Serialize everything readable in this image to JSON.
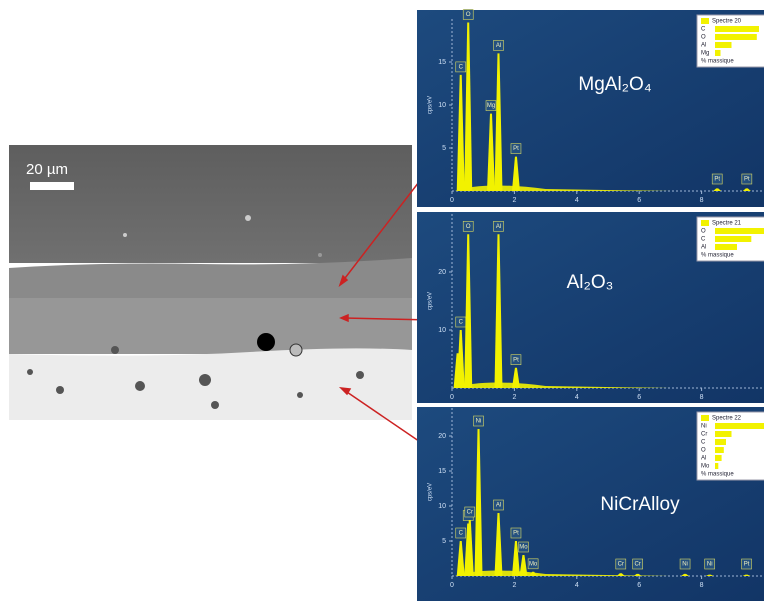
{
  "image": {
    "scale_label": "20 µm"
  },
  "chart_data": [
    {
      "type": "spectrum",
      "annotation": "MgAl₂O₄",
      "ylabel": "cps/eV",
      "categories": [
        "C",
        "O",
        "Mg",
        "Al",
        "Pt",
        "Pt",
        "Pt"
      ],
      "x": [
        0.28,
        0.52,
        1.25,
        1.49,
        2.05,
        8.5,
        9.45
      ],
      "values": [
        13.5,
        19.6,
        9,
        16,
        4,
        0.3,
        0.3
      ],
      "xlim": [
        0,
        10
      ],
      "ylim": [
        0,
        20
      ],
      "xticks": [
        0,
        2,
        4,
        6,
        8
      ],
      "yticks": [
        5,
        10,
        15
      ],
      "color": "#f2f200",
      "legend": {
        "title": "Spectre 20",
        "items": [
          "C",
          "O",
          "Al",
          "Mg"
        ],
        "values": [
          40,
          38,
          15,
          5
        ],
        "footer": "% massique",
        "end_label": "5"
      }
    },
    {
      "type": "spectrum",
      "annotation": "Al₂O₃",
      "ylabel": "cps/eV",
      "categories": [
        null,
        "C",
        "O",
        "Al",
        "Pt"
      ],
      "x": [
        0.18,
        0.28,
        0.52,
        1.49,
        2.05
      ],
      "values": [
        6,
        10,
        26.5,
        26.5,
        3.5
      ],
      "xlim": [
        0,
        10
      ],
      "ylim": [
        0,
        30
      ],
      "xticks": [
        0,
        2,
        4,
        6,
        8
      ],
      "yticks": [
        10,
        20
      ],
      "color": "#f2f200",
      "legend": {
        "title": "Spectre 21",
        "items": [
          "O",
          "C",
          "Al"
        ],
        "values": [
          45,
          33,
          20
        ],
        "footer": "% massique",
        "end_label": "5"
      }
    },
    {
      "type": "spectrum",
      "annotation": "NiCrAlloy",
      "ylabel": "cps/eV",
      "categories": [
        "C",
        "O",
        "Cr",
        "Ni",
        "Al",
        "Pt",
        "Mo",
        "Mo",
        "Cr",
        "Cr",
        "Ni",
        "Ni",
        "Pt"
      ],
      "x": [
        0.28,
        0.52,
        0.57,
        0.85,
        1.49,
        2.05,
        2.29,
        2.6,
        5.41,
        5.95,
        7.47,
        8.26,
        9.44
      ],
      "values": [
        5,
        7.5,
        8,
        21,
        9,
        5,
        3,
        0.6,
        0.4,
        0.3,
        0.3,
        0.2,
        0.2
      ],
      "xlim": [
        0,
        10
      ],
      "ylim": [
        0,
        24
      ],
      "xticks": [
        0,
        2,
        4,
        6,
        8
      ],
      "yticks": [
        5,
        10,
        15,
        20
      ],
      "color": "#f2f200",
      "legend": {
        "title": "Spectre 22",
        "items": [
          "Ni",
          "Cr",
          "C",
          "O",
          "Al",
          "Mo"
        ],
        "values": [
          62,
          15,
          10,
          8,
          6,
          3
        ],
        "footer": "% massique",
        "end_label": "5"
      }
    }
  ]
}
